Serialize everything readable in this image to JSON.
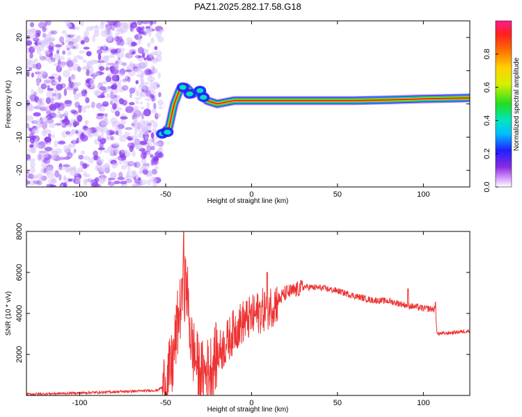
{
  "title": "PAZ1.2025.282.17.58.G18",
  "colors": {
    "noise": "#8a3cf0",
    "noise_light": "#d8c4fb",
    "snr_line": "#ee3333",
    "plot_bg": "#ffffff",
    "frame": "#000000"
  },
  "chart_data": [
    {
      "type": "heatmap",
      "xlabel": "Height of straight line (km)",
      "ylabel": "Frequency (Hz)",
      "xlim": [
        -131,
        127
      ],
      "ylim": [
        -25,
        25
      ],
      "xticks": [
        "-100",
        "-50",
        "0",
        "50",
        "100"
      ],
      "xtick_values": [
        -100,
        -50,
        0,
        50,
        100
      ],
      "yticks": [
        "-20",
        "-10",
        "0",
        "10",
        "20"
      ],
      "ytick_values": [
        -20,
        -10,
        0,
        10,
        20
      ],
      "colorbar": {
        "label": "Normalized spectral amplitude",
        "ticks": [
          "0.0",
          "0.2",
          "0.4",
          "0.6",
          "0.8"
        ],
        "tick_values": [
          0,
          0.2,
          0.4,
          0.6,
          0.8
        ],
        "range": [
          0,
          1
        ]
      },
      "noise_region_x": [
        -131,
        -55
      ],
      "ridge": [
        {
          "x": -52,
          "f": -9
        },
        {
          "x": -48,
          "f": -7
        },
        {
          "x": -45,
          "f": 0
        },
        {
          "x": -42,
          "f": 4
        },
        {
          "x": -38,
          "f": 5
        },
        {
          "x": -34,
          "f": 3
        },
        {
          "x": -30,
          "f": 4
        },
        {
          "x": -26,
          "f": 1
        },
        {
          "x": -20,
          "f": 0
        },
        {
          "x": -10,
          "f": 1
        },
        {
          "x": 0,
          "f": 1
        },
        {
          "x": 20,
          "f": 1
        },
        {
          "x": 40,
          "f": 1
        },
        {
          "x": 60,
          "f": 1
        },
        {
          "x": 80,
          "f": 1.2
        },
        {
          "x": 100,
          "f": 1.5
        },
        {
          "x": 127,
          "f": 1.8
        }
      ]
    },
    {
      "type": "line",
      "xlabel": "Height of straight line (km)",
      "ylabel": "SNR (10 * v/v)",
      "xlim": [
        -131,
        127
      ],
      "ylim": [
        0,
        8000
      ],
      "xticks": [
        "-100",
        "-50",
        "0",
        "50",
        "100"
      ],
      "xtick_values": [
        -100,
        -50,
        0,
        50,
        100
      ],
      "yticks": [
        "2000",
        "4000",
        "6000",
        "8000"
      ],
      "ytick_values": [
        2000,
        4000,
        6000,
        8000
      ],
      "series": [
        {
          "name": "SNR",
          "x": [
            -131,
            -110,
            -90,
            -70,
            -55,
            -50,
            -46,
            -43,
            -40,
            -38,
            -35,
            -30,
            -25,
            -20,
            -15,
            -10,
            -5,
            0,
            5,
            10,
            15,
            20,
            25,
            30,
            40,
            50,
            60,
            70,
            80,
            90,
            100,
            107,
            108,
            115,
            127
          ],
          "y": [
            60,
            100,
            150,
            200,
            250,
            500,
            1500,
            3500,
            5000,
            5500,
            2500,
            1000,
            1200,
            2000,
            2500,
            3200,
            3600,
            3800,
            4100,
            4300,
            4600,
            5000,
            5100,
            5300,
            5250,
            5100,
            4850,
            4650,
            4600,
            4400,
            4250,
            4200,
            3000,
            3050,
            3150
          ]
        }
      ],
      "spikes": [
        {
          "x": -39.5,
          "y": 8000
        },
        {
          "x": -40.5,
          "y": 5700
        },
        {
          "x": 9,
          "y": 6000
        },
        {
          "x": 91,
          "y": 5200
        },
        {
          "x": 107,
          "y": 4550
        }
      ]
    }
  ]
}
